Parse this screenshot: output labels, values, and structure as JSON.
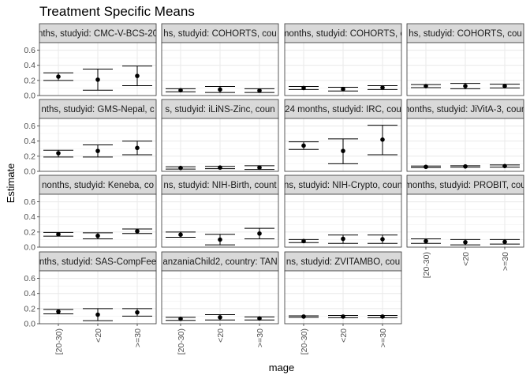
{
  "chart_data": {
    "type": "scatter",
    "title": "Treatment Specific Means",
    "xlabel": "mage",
    "ylabel": "Estimate",
    "ylim": [
      0,
      0.7
    ],
    "yticks": [
      "0.0",
      "0.2",
      "0.4",
      "0.6"
    ],
    "ytick_values": [
      0,
      0.2,
      0.4,
      0.6
    ],
    "categories": [
      "[20-30)",
      "<20",
      ">=30"
    ],
    "grid": true,
    "facet_ncol": 4,
    "facets": [
      {
        "label": "nths, studyid: CMC-V-BCS-20",
        "points": [
          {
            "est": 0.25,
            "lo": 0.2,
            "hi": 0.3
          },
          {
            "est": 0.21,
            "lo": 0.07,
            "hi": 0.35
          },
          {
            "est": 0.26,
            "lo": 0.13,
            "hi": 0.39
          }
        ]
      },
      {
        "label": "hs, studyid: COHORTS, cou",
        "points": [
          {
            "est": 0.07,
            "lo": 0.05,
            "hi": 0.09
          },
          {
            "est": 0.08,
            "lo": 0.04,
            "hi": 0.12
          },
          {
            "est": 0.065,
            "lo": 0.04,
            "hi": 0.09
          }
        ]
      },
      {
        "label": "months, studyid: COHORTS, c",
        "points": [
          {
            "est": 0.1,
            "lo": 0.08,
            "hi": 0.12
          },
          {
            "est": 0.085,
            "lo": 0.06,
            "hi": 0.11
          },
          {
            "est": 0.105,
            "lo": 0.08,
            "hi": 0.13
          }
        ]
      },
      {
        "label": "hs, studyid: COHORTS, cou",
        "points": [
          {
            "est": 0.125,
            "lo": 0.105,
            "hi": 0.145
          },
          {
            "est": 0.125,
            "lo": 0.09,
            "hi": 0.16
          },
          {
            "est": 0.125,
            "lo": 0.1,
            "hi": 0.15
          }
        ]
      },
      {
        "label": "nths, studyid: GMS-Nepal, c",
        "points": [
          {
            "est": 0.24,
            "lo": 0.19,
            "hi": 0.28
          },
          {
            "est": 0.27,
            "lo": 0.19,
            "hi": 0.35
          },
          {
            "est": 0.31,
            "lo": 0.22,
            "hi": 0.4
          }
        ]
      },
      {
        "label": "s, studyid: iLiNS-Zinc, coun",
        "points": [
          {
            "est": 0.045,
            "lo": 0.03,
            "hi": 0.06
          },
          {
            "est": 0.05,
            "lo": 0.035,
            "hi": 0.065
          },
          {
            "est": 0.05,
            "lo": 0.025,
            "hi": 0.075
          }
        ]
      },
      {
        "label": "24 months, studyid: IRC, cou",
        "points": [
          {
            "est": 0.34,
            "lo": 0.29,
            "hi": 0.39
          },
          {
            "est": 0.27,
            "lo": 0.1,
            "hi": 0.43
          },
          {
            "est": 0.42,
            "lo": 0.22,
            "hi": 0.61
          }
        ]
      },
      {
        "label": "months, studyid: JiVitA-3, count",
        "points": [
          {
            "est": 0.06,
            "lo": 0.05,
            "hi": 0.07
          },
          {
            "est": 0.065,
            "lo": 0.055,
            "hi": 0.075
          },
          {
            "est": 0.07,
            "lo": 0.055,
            "hi": 0.085
          }
        ]
      },
      {
        "label": "nonths, studyid: Keneba, co",
        "points": [
          {
            "est": 0.17,
            "lo": 0.145,
            "hi": 0.195
          },
          {
            "est": 0.15,
            "lo": 0.11,
            "hi": 0.19
          },
          {
            "est": 0.21,
            "lo": 0.18,
            "hi": 0.24
          }
        ]
      },
      {
        "label": "ns, studyid: NIH-Birth, count",
        "points": [
          {
            "est": 0.165,
            "lo": 0.13,
            "hi": 0.2
          },
          {
            "est": 0.1,
            "lo": 0.03,
            "hi": 0.17
          },
          {
            "est": 0.18,
            "lo": 0.11,
            "hi": 0.25
          }
        ]
      },
      {
        "label": "ns, studyid: NIH-Crypto, coun",
        "points": [
          {
            "est": 0.08,
            "lo": 0.06,
            "hi": 0.1
          },
          {
            "est": 0.11,
            "lo": 0.05,
            "hi": 0.16
          },
          {
            "est": 0.105,
            "lo": 0.05,
            "hi": 0.16
          }
        ]
      },
      {
        "label": "months, studyid: PROBIT, cou",
        "points": [
          {
            "est": 0.08,
            "lo": 0.05,
            "hi": 0.11
          },
          {
            "est": 0.065,
            "lo": 0.03,
            "hi": 0.1
          },
          {
            "est": 0.07,
            "lo": 0.04,
            "hi": 0.1
          }
        ]
      },
      {
        "label": "nths, studyid: SAS-CompFee",
        "points": [
          {
            "est": 0.16,
            "lo": 0.13,
            "hi": 0.19
          },
          {
            "est": 0.12,
            "lo": 0.04,
            "hi": 0.2
          },
          {
            "est": 0.15,
            "lo": 0.1,
            "hi": 0.2
          }
        ]
      },
      {
        "label": "anzaniaChild2, country: TAN",
        "points": [
          {
            "est": 0.065,
            "lo": 0.045,
            "hi": 0.085
          },
          {
            "est": 0.085,
            "lo": 0.05,
            "hi": 0.12
          },
          {
            "est": 0.07,
            "lo": 0.05,
            "hi": 0.09
          }
        ]
      },
      {
        "label": "ns, studyid: ZVITAMBO, cou",
        "points": [
          {
            "est": 0.095,
            "lo": 0.085,
            "hi": 0.105
          },
          {
            "est": 0.095,
            "lo": 0.08,
            "hi": 0.11
          },
          {
            "est": 0.095,
            "lo": 0.08,
            "hi": 0.11
          }
        ]
      }
    ]
  }
}
